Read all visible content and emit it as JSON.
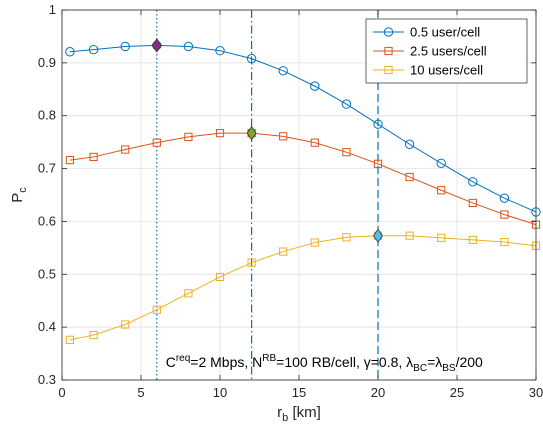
{
  "chart_data": {
    "type": "line",
    "xlabel": "r",
    "xlabel_sub": "b",
    "xlabel_unit": "[km]",
    "ylabel": "P",
    "ylabel_sub": "c",
    "xlim": [
      0,
      30
    ],
    "ylim": [
      0.3,
      1
    ],
    "xticks": [
      0,
      5,
      10,
      15,
      20,
      25,
      30
    ],
    "yticks": [
      0.3,
      0.4,
      0.5,
      0.6,
      0.7,
      0.8,
      0.9,
      1
    ],
    "grid": true,
    "legend_position": "top-right",
    "x": [
      0.5,
      2,
      4,
      6,
      8,
      10,
      12,
      14,
      16,
      18,
      20,
      22,
      24,
      26,
      28,
      30
    ],
    "series": [
      {
        "name": "0.5 user/cell",
        "color": "#0072BD",
        "marker": "circle",
        "values": [
          0.921,
          0.925,
          0.931,
          0.933,
          0.931,
          0.923,
          0.908,
          0.885,
          0.856,
          0.822,
          0.784,
          0.746,
          0.71,
          0.675,
          0.644,
          0.618
        ]
      },
      {
        "name": "2.5 users/cell",
        "color": "#D95319",
        "marker": "square",
        "values": [
          0.716,
          0.722,
          0.736,
          0.749,
          0.76,
          0.767,
          0.767,
          0.761,
          0.749,
          0.731,
          0.709,
          0.684,
          0.659,
          0.635,
          0.613,
          0.594
        ]
      },
      {
        "name": "10 users/cell",
        "color": "#EDB120",
        "marker": "square",
        "values": [
          0.376,
          0.385,
          0.405,
          0.433,
          0.464,
          0.495,
          0.522,
          0.543,
          0.56,
          0.57,
          0.573,
          0.573,
          0.569,
          0.565,
          0.561,
          0.554
        ]
      }
    ],
    "vlines": [
      {
        "x": 6,
        "style": "dotted",
        "color": "#0072BD"
      },
      {
        "x": 12,
        "style": "dashdot",
        "color": "#0072BD"
      },
      {
        "x": 20,
        "style": "dashed",
        "color": "#0072BD"
      }
    ],
    "optima": [
      {
        "x": 6,
        "y": 0.933,
        "color": "#7E2F8E"
      },
      {
        "x": 12,
        "y": 0.767,
        "color": "#77AC30"
      },
      {
        "x": 20,
        "y": 0.573,
        "color": "#4DBEEE"
      }
    ],
    "annotation": {
      "c": "C",
      "req": "req",
      "t1": "=2 Mbps, N",
      "rb": "RB",
      "t2": "=100 RB/cell, ",
      "gamma": "γ",
      "t3": "=0.8, ",
      "lambda1": "λ",
      "bc": "BC",
      "eq": "=",
      "lambda2": "λ",
      "bs": "BS",
      "t4": "/200",
      "x": 16.6,
      "y": 0.325
    }
  }
}
